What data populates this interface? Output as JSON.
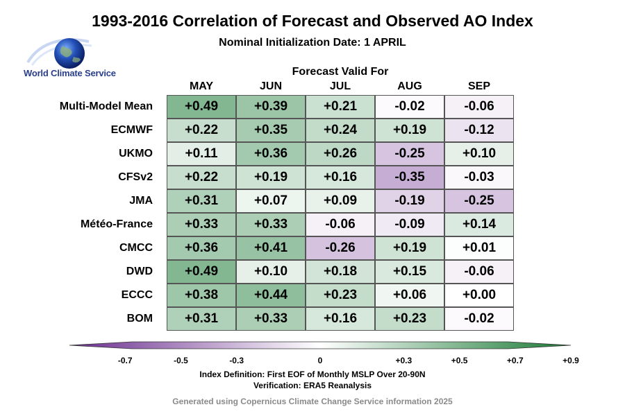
{
  "title": "1993-2016 Correlation of Forecast and Observed AO Index",
  "subtitle": "Nominal Initialization Date: 1 APRIL",
  "logo": {
    "text": "World Climate Service"
  },
  "chart_data": {
    "type": "heatmap",
    "header_label": "Forecast Valid For",
    "columns": [
      "MAY",
      "JUN",
      "JUL",
      "AUG",
      "SEP"
    ],
    "rows": [
      {
        "model": "Multi-Model Mean",
        "values": [
          0.49,
          0.39,
          0.21,
          -0.02,
          -0.06
        ],
        "labels": [
          "+0.49",
          "+0.39",
          "+0.21",
          "-0.02",
          "-0.06"
        ]
      },
      {
        "model": "ECMWF",
        "values": [
          0.22,
          0.35,
          0.24,
          0.19,
          -0.12
        ],
        "labels": [
          "+0.22",
          "+0.35",
          "+0.24",
          "+0.19",
          "-0.12"
        ]
      },
      {
        "model": "UKMO",
        "values": [
          0.11,
          0.36,
          0.26,
          -0.25,
          0.1
        ],
        "labels": [
          "+0.11",
          "+0.36",
          "+0.26",
          "-0.25",
          "+0.10"
        ]
      },
      {
        "model": "CFSv2",
        "values": [
          0.22,
          0.19,
          0.16,
          -0.35,
          -0.03
        ],
        "labels": [
          "+0.22",
          "+0.19",
          "+0.16",
          "-0.35",
          "-0.03"
        ]
      },
      {
        "model": "JMA",
        "values": [
          0.31,
          0.07,
          0.09,
          -0.19,
          -0.25
        ],
        "labels": [
          "+0.31",
          "+0.07",
          "+0.09",
          "-0.19",
          "-0.25"
        ]
      },
      {
        "model": "Météo-France",
        "values": [
          0.33,
          0.33,
          -0.06,
          -0.09,
          0.14
        ],
        "labels": [
          "+0.33",
          "+0.33",
          "-0.06",
          "-0.09",
          "+0.14"
        ]
      },
      {
        "model": "CMCC",
        "values": [
          0.36,
          0.41,
          -0.26,
          0.19,
          0.01
        ],
        "labels": [
          "+0.36",
          "+0.41",
          "-0.26",
          "+0.19",
          "+0.01"
        ]
      },
      {
        "model": "DWD",
        "values": [
          0.49,
          0.1,
          0.18,
          0.15,
          -0.06
        ],
        "labels": [
          "+0.49",
          "+0.10",
          "+0.18",
          "+0.15",
          "-0.06"
        ]
      },
      {
        "model": "ECCC",
        "values": [
          0.38,
          0.44,
          0.23,
          0.06,
          0.0
        ],
        "labels": [
          "+0.38",
          "+0.44",
          "+0.23",
          "+0.06",
          "+0.00"
        ]
      },
      {
        "model": "BOM",
        "values": [
          0.31,
          0.33,
          0.16,
          0.23,
          -0.02
        ],
        "labels": [
          "+0.31",
          "+0.33",
          "+0.16",
          "+0.23",
          "-0.02"
        ]
      }
    ],
    "colorbar": {
      "min": -0.9,
      "max": 0.9,
      "ticks": [
        -0.7,
        -0.5,
        -0.3,
        0,
        0.3,
        0.5,
        0.7,
        0.9
      ],
      "tick_labels": [
        "-0.7",
        "-0.5",
        "-0.3",
        "0",
        "+0.3",
        "+0.5",
        "+0.7",
        "+0.9"
      ],
      "negative_color": "#6a2c8e",
      "positive_color": "#1a7a35"
    }
  },
  "definition": "Index Definition: First EOF of Monthly MSLP Over 20-90N",
  "verification": "Verification: ERA5 Reanalysis",
  "footer": "Generated using Copernicus Climate Change Service information 2025"
}
